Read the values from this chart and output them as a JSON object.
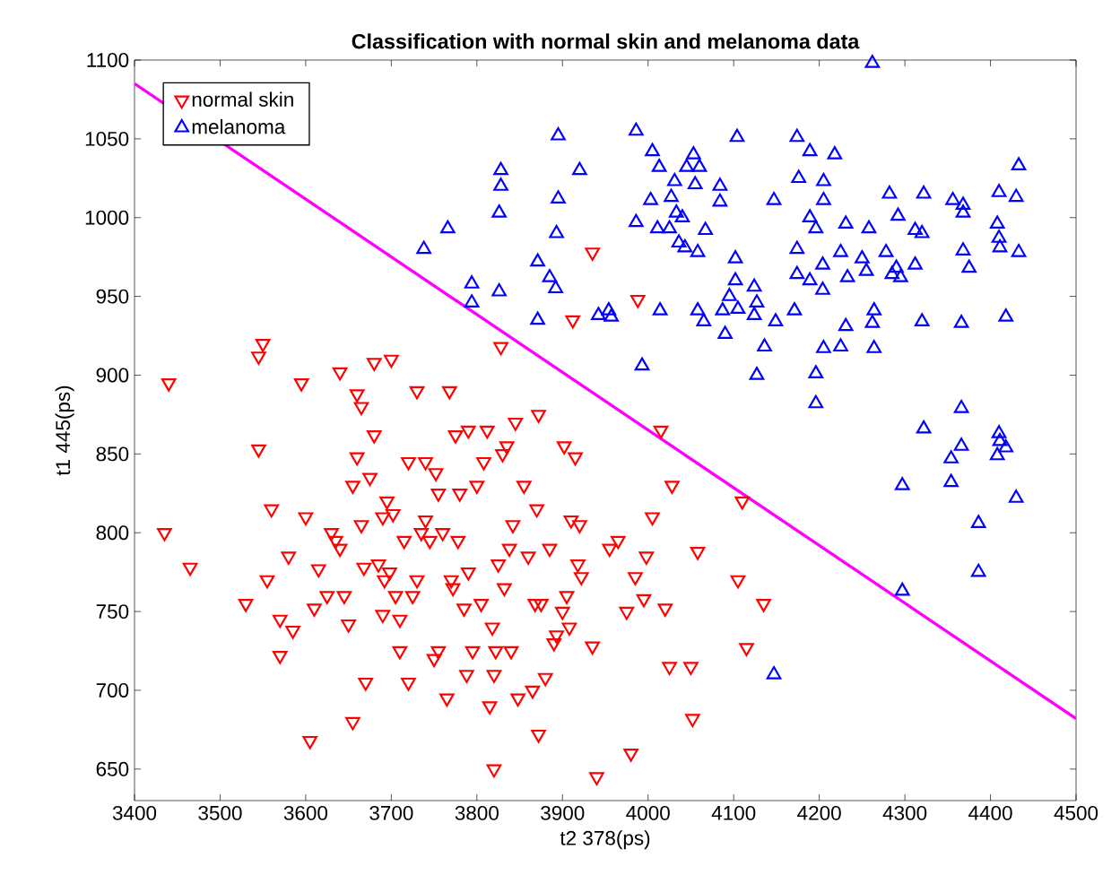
{
  "chart_data": {
    "type": "scatter",
    "title": "Classification with normal skin and melanoma data",
    "xlabel": "t2 378(ps)",
    "ylabel": "t1 445(ps)",
    "xlim": [
      3400,
      4500
    ],
    "ylim": [
      630,
      1100
    ],
    "xticks": [
      3400,
      3500,
      3600,
      3700,
      3800,
      3900,
      4000,
      4100,
      4200,
      4300,
      4400,
      4500
    ],
    "yticks": [
      650,
      700,
      750,
      800,
      850,
      900,
      950,
      1000,
      1050,
      1100
    ],
    "legend": "top left",
    "grid": false,
    "series": [
      {
        "name": "normal skin",
        "color": "#ff0000",
        "marker": "triangle-down",
        "x": [
          3440,
          3465,
          3435,
          3545,
          3550,
          3545,
          3560,
          3555,
          3530,
          3570,
          3570,
          3585,
          3580,
          3595,
          3600,
          3605,
          3615,
          3610,
          3625,
          3630,
          3635,
          3640,
          3640,
          3645,
          3650,
          3655,
          3655,
          3660,
          3660,
          3665,
          3665,
          3668,
          3670,
          3675,
          3680,
          3680,
          3685,
          3690,
          3690,
          3692,
          3695,
          3698,
          3700,
          3702,
          3705,
          3710,
          3710,
          3715,
          3720,
          3720,
          3725,
          3730,
          3730,
          3735,
          3740,
          3740,
          3745,
          3750,
          3752,
          3755,
          3755,
          3760,
          3765,
          3768,
          3770,
          3772,
          3775,
          3778,
          3780,
          3785,
          3788,
          3790,
          3790,
          3795,
          3800,
          3805,
          3808,
          3812,
          3815,
          3818,
          3820,
          3820,
          3822,
          3825,
          3828,
          3830,
          3832,
          3835,
          3838,
          3840,
          3842,
          3845,
          3848,
          3855,
          3860,
          3865,
          3868,
          3870,
          3872,
          3872,
          3875,
          3880,
          3885,
          3890,
          3893,
          3900,
          3902,
          3905,
          3908,
          3910,
          3912,
          3915,
          3918,
          3920,
          3922,
          3935,
          3940,
          3935,
          3955,
          3965,
          3975,
          3980,
          3985,
          3988,
          3995,
          3998,
          4005,
          4015,
          4020,
          4025,
          4028,
          4050,
          4052,
          4058,
          4105,
          4110,
          4115,
          4135
        ],
        "values": [
          895,
          778,
          800,
          912,
          920,
          853,
          815,
          770,
          755,
          745,
          722,
          738,
          785,
          895,
          810,
          668,
          777,
          752,
          760,
          800,
          795,
          790,
          902,
          760,
          742,
          680,
          830,
          848,
          888,
          880,
          805,
          778,
          705,
          835,
          908,
          862,
          780,
          810,
          748,
          770,
          820,
          775,
          910,
          812,
          760,
          745,
          725,
          795,
          845,
          705,
          760,
          770,
          890,
          800,
          808,
          845,
          795,
          720,
          838,
          725,
          825,
          800,
          695,
          890,
          770,
          765,
          862,
          795,
          825,
          752,
          710,
          865,
          775,
          725,
          830,
          755,
          845,
          865,
          690,
          740,
          650,
          710,
          725,
          780,
          918,
          850,
          765,
          855,
          790,
          725,
          805,
          870,
          695,
          830,
          785,
          700,
          755,
          815,
          672,
          875,
          755,
          708,
          790,
          730,
          735,
          750,
          855,
          760,
          740,
          808,
          935,
          848,
          780,
          805,
          772,
          728,
          645,
          978,
          790,
          795,
          750,
          660,
          772,
          948,
          758,
          785,
          810,
          865,
          752,
          715,
          830,
          715,
          682,
          788,
          770,
          820,
          727,
          755
        ]
      },
      {
        "name": "melanoma",
        "color": "#0000ff",
        "marker": "triangle",
        "x": [
          3895,
          3828,
          3920,
          3828,
          3895,
          3826,
          3766,
          3893,
          3738,
          3871,
          3885,
          3892,
          3794,
          3826,
          3794,
          3871,
          3942,
          4262,
          3986,
          4104,
          4174,
          4005,
          4189,
          4218,
          4053,
          4433,
          4013,
          4045,
          4060,
          4031,
          4055,
          4084,
          4176,
          4205,
          4282,
          4322,
          4356,
          4368,
          4410,
          4430,
          4003,
          4027,
          4084,
          4147,
          4205,
          4368,
          3986,
          4033,
          4040,
          4011,
          4025,
          4067,
          4036,
          4043,
          4058,
          4189,
          4196,
          4231,
          4258,
          4292,
          4312,
          4320,
          4408,
          4410,
          4411,
          4433,
          4368,
          4375,
          4174,
          4204,
          4225,
          4250,
          4278,
          4290,
          4312,
          4174,
          4189,
          4204,
          4233,
          4255,
          4285,
          4295,
          4102,
          4102,
          4124,
          4095,
          4127,
          4105,
          4087,
          4124,
          4149,
          4171,
          4058,
          4065,
          4014,
          3954,
          3957,
          4090,
          4136,
          4264,
          4262,
          4231,
          4320,
          4366,
          4418,
          4205,
          4225,
          4264,
          3993,
          4127,
          4196,
          4196,
          4366,
          4322,
          4366,
          4354,
          4410,
          4411,
          4418,
          4408,
          4297,
          4354,
          4430,
          4386,
          4386,
          4297,
          4147
        ],
        "values": [
          1052,
          1030,
          1030,
          1020,
          1012,
          1003,
          993,
          990,
          980,
          972,
          962,
          955,
          958,
          953,
          946,
          935,
          938,
          1098,
          1055,
          1051,
          1051,
          1042,
          1042,
          1040,
          1040,
          1033,
          1032,
          1032,
          1032,
          1023,
          1021,
          1020,
          1025,
          1023,
          1015,
          1015,
          1011,
          1008,
          1016,
          1013,
          1011,
          1013,
          1010,
          1011,
          1011,
          1003,
          997,
          1003,
          1000,
          993,
          993,
          992,
          984,
          981,
          978,
          1000,
          993,
          996,
          993,
          1001,
          992,
          990,
          996,
          987,
          981,
          978,
          979,
          968,
          980,
          970,
          978,
          974,
          978,
          968,
          970,
          964,
          960,
          954,
          962,
          966,
          964,
          962,
          974,
          960,
          956,
          950,
          946,
          942,
          941,
          938,
          934,
          941,
          941,
          934,
          941,
          941,
          937,
          926,
          918,
          941,
          933,
          931,
          934,
          933,
          937,
          917,
          918,
          917,
          906,
          900,
          901,
          882,
          879,
          866,
          855,
          847,
          863,
          858,
          854,
          849,
          830,
          832,
          822,
          806,
          775,
          763,
          710
        ]
      },
      {
        "type": "line",
        "color": "#ff00ff",
        "x": [
          3400,
          4500
        ],
        "values": [
          1085,
          682
        ]
      }
    ]
  }
}
